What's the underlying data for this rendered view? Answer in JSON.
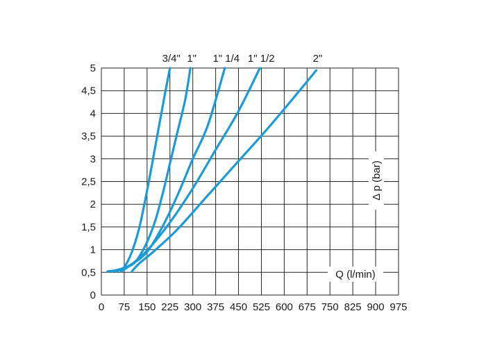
{
  "chart_data": {
    "type": "line",
    "title": "",
    "xlabel": "Q (l/min)",
    "ylabel": "Δ p (bar)",
    "xlim": [
      0,
      975
    ],
    "ylim": [
      0,
      5
    ],
    "x_ticks": [
      "0",
      "75",
      "150",
      "225",
      "300",
      "375",
      "450",
      "525",
      "600",
      "675",
      "750",
      "825",
      "900",
      "975"
    ],
    "y_ticks": [
      "0",
      "0,5",
      "1",
      "1,5",
      "2",
      "2,5",
      "3",
      "3,5",
      "4",
      "4,5",
      "5"
    ],
    "grid": true,
    "line_color": "#1a9ad6",
    "series": [
      {
        "name": "3/4\"",
        "points": [
          [
            20,
            0.52
          ],
          [
            50,
            0.55
          ],
          [
            75,
            0.62
          ],
          [
            100,
            0.95
          ],
          [
            125,
            1.5
          ],
          [
            150,
            2.3
          ],
          [
            175,
            3.2
          ],
          [
            205,
            4.3
          ],
          [
            225,
            5.0
          ]
        ]
      },
      {
        "name": "1\"",
        "points": [
          [
            35,
            0.52
          ],
          [
            75,
            0.6
          ],
          [
            110,
            0.72
          ],
          [
            145,
            1.1
          ],
          [
            175,
            1.6
          ],
          [
            200,
            2.2
          ],
          [
            225,
            2.9
          ],
          [
            250,
            3.6
          ],
          [
            275,
            4.3
          ],
          [
            292,
            5.0
          ]
        ]
      },
      {
        "name": "1\" 1/4",
        "points": [
          [
            50,
            0.52
          ],
          [
            100,
            0.68
          ],
          [
            150,
            0.95
          ],
          [
            200,
            1.5
          ],
          [
            250,
            2.2
          ],
          [
            300,
            3.0
          ],
          [
            350,
            3.75
          ],
          [
            405,
            5.0
          ]
        ]
      },
      {
        "name": "1\" 1/2",
        "points": [
          [
            65,
            0.52
          ],
          [
            100,
            0.68
          ],
          [
            150,
            0.98
          ],
          [
            225,
            1.6
          ],
          [
            300,
            2.35
          ],
          [
            375,
            3.2
          ],
          [
            450,
            4.05
          ],
          [
            520,
            5.0
          ]
        ]
      },
      {
        "name": "2\"",
        "points": [
          [
            100,
            0.52
          ],
          [
            125,
            0.7
          ],
          [
            175,
            0.98
          ],
          [
            250,
            1.45
          ],
          [
            350,
            2.2
          ],
          [
            450,
            2.95
          ],
          [
            550,
            3.7
          ],
          [
            650,
            4.5
          ],
          [
            705,
            4.95
          ]
        ]
      }
    ]
  }
}
